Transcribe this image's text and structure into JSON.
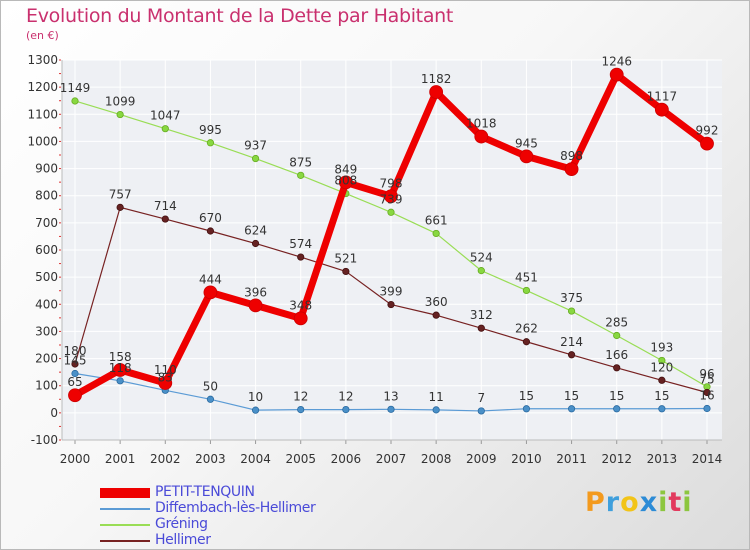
{
  "chart_data": {
    "type": "line",
    "title": "Evolution du Montant de la Dette par Habitant",
    "subtitle": "(en €)",
    "x": [
      "2000",
      "2001",
      "2002",
      "2003",
      "2004",
      "2005",
      "2006",
      "2007",
      "2008",
      "2009",
      "2010",
      "2011",
      "2012",
      "2013",
      "2014"
    ],
    "ylim": [
      -100,
      1300
    ],
    "yticks": [
      -100,
      0,
      100,
      200,
      300,
      400,
      500,
      600,
      700,
      800,
      900,
      1000,
      1100,
      1200,
      1300
    ],
    "grid": true,
    "legend_position": "bottom-left",
    "series": [
      {
        "name": "PETIT-TENQUIN",
        "color": "#ee0000",
        "values": [
          65,
          158,
          110,
          444,
          396,
          348,
          849,
          798,
          1182,
          1018,
          945,
          898,
          1246,
          1117,
          992
        ]
      },
      {
        "name": "Diffembach-lès-Hellimer",
        "color": "#5b9bd5",
        "values": [
          145,
          118,
          83,
          50,
          10,
          12,
          12,
          13,
          11,
          7,
          15,
          15,
          15,
          15,
          16
        ]
      },
      {
        "name": "Gréning",
        "color": "#99dd55",
        "values": [
          1149,
          1099,
          1047,
          995,
          937,
          875,
          808,
          739,
          661,
          524,
          451,
          375,
          285,
          193,
          96
        ]
      },
      {
        "name": "Hellimer",
        "color": "#772222",
        "values": [
          180,
          757,
          714,
          670,
          624,
          574,
          521,
          399,
          360,
          312,
          262,
          214,
          166,
          120,
          75
        ]
      }
    ],
    "data_labels": {
      "PETIT-TENQUIN": [
        "65",
        "158",
        "110",
        "444",
        "396",
        "348",
        "849",
        "798",
        "1182",
        "1018",
        "945",
        "898",
        "1246",
        "1117",
        "992"
      ],
      "Diffembach-lès-Hellimer": [
        "145",
        "118",
        "83",
        "50",
        "10",
        "12",
        "12",
        "13",
        "11",
        "7",
        "15",
        "15",
        "15",
        "15",
        "16"
      ],
      "Gréning": [
        "1149",
        "1099",
        "1047",
        "995",
        "937",
        "875",
        "808",
        "739",
        "661",
        "524",
        "451",
        "375",
        "285",
        "193",
        "96"
      ],
      "Hellimer": [
        "180",
        "757",
        "714",
        "670",
        "624",
        "574",
        "521",
        "399",
        "360",
        "312",
        "262",
        "214",
        "166",
        "120",
        "75"
      ]
    }
  },
  "logo": {
    "text": "Proxiti"
  },
  "colors": {
    "title": "#c9306e",
    "legend_text": "#4a4ad8",
    "grid": "#ffffff",
    "axis": "#bbbbbb"
  }
}
